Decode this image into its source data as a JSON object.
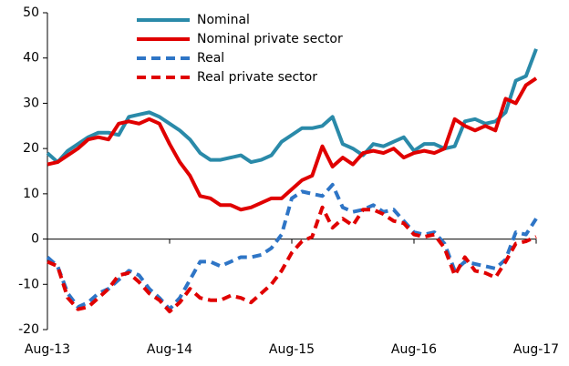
{
  "chart_data": {
    "type": "line",
    "categories": [
      "Aug-13",
      null,
      null,
      null,
      null,
      null,
      null,
      null,
      null,
      null,
      null,
      null,
      "Aug-14",
      null,
      null,
      null,
      null,
      null,
      null,
      null,
      null,
      null,
      null,
      null,
      "Aug-15",
      null,
      null,
      null,
      null,
      null,
      null,
      null,
      null,
      null,
      null,
      null,
      "Aug-16",
      null,
      null,
      null,
      null,
      null,
      null,
      null,
      null,
      null,
      null,
      null,
      "Aug-17"
    ],
    "ylim": [
      -20,
      50
    ],
    "yticks": [
      -20,
      -10,
      0,
      10,
      20,
      30,
      40,
      50
    ],
    "legend": "upper center",
    "series": [
      {
        "name": "Nominal",
        "color": "#2a8aa9",
        "line_style": "solid",
        "values": [
          19,
          17,
          19.5,
          21,
          22.5,
          23.5,
          23.5,
          23,
          27,
          27.5,
          28,
          27,
          25.5,
          24,
          22,
          19,
          17.5,
          17.5,
          18,
          18.5,
          17,
          17.5,
          18.5,
          21.5,
          23,
          24.5,
          24.5,
          25,
          27,
          21,
          20,
          18.5,
          21,
          20.5,
          21.5,
          22.5,
          19.5,
          21,
          21,
          20,
          20.5,
          26,
          26.5,
          25.5,
          26,
          28,
          35,
          36,
          42
        ]
      },
      {
        "name": "Nominal private sector",
        "color": "#e00000",
        "line_style": "solid",
        "values": [
          16.5,
          17,
          18.5,
          20,
          22,
          22.5,
          22,
          25.5,
          26,
          25.5,
          26.5,
          25.5,
          21,
          17,
          14,
          9.5,
          9,
          7.5,
          7.5,
          6.5,
          7,
          8,
          9,
          9,
          11,
          13,
          14,
          20.5,
          16,
          18,
          16.5,
          19,
          19.5,
          19,
          20,
          18,
          19,
          19.5,
          19,
          20,
          26.5,
          25,
          24,
          25,
          24,
          31,
          30,
          34,
          35.5
        ]
      },
      {
        "name": "Real",
        "color": "#2e75c6",
        "line_style": "dashed",
        "values": [
          -4,
          -6,
          -12,
          -15,
          -14,
          -12,
          -11,
          -9,
          -7,
          -8,
          -11,
          -13,
          -15.5,
          -13,
          -9,
          -5,
          -5,
          -6,
          -5,
          -4,
          -4,
          -3.5,
          -2,
          1,
          9,
          10.5,
          10,
          9.5,
          12,
          7,
          6,
          6.5,
          7.5,
          6,
          6.5,
          4,
          1.5,
          1,
          1.5,
          -1,
          -7,
          -5,
          -5.5,
          -6,
          -6.5,
          -4.5,
          1.5,
          1,
          4.5
        ]
      },
      {
        "name": "Real private sector",
        "color": "#e00000",
        "line_style": "dashed",
        "values": [
          -5,
          -6,
          -13,
          -15.5,
          -15,
          -13,
          -11,
          -8,
          -7.5,
          -9.5,
          -12,
          -13.5,
          -16,
          -14,
          -11,
          -13,
          -13.5,
          -13.5,
          -12.5,
          -13,
          -14,
          -12,
          -10,
          -7,
          -3,
          -0.5,
          0.5,
          7,
          2.5,
          4.5,
          3,
          6.5,
          6.5,
          5.5,
          4,
          3.5,
          1,
          0.5,
          1,
          -2,
          -8,
          -4,
          -7,
          -7.5,
          -8.5,
          -5,
          -1,
          -0.5,
          0.5
        ]
      }
    ]
  }
}
